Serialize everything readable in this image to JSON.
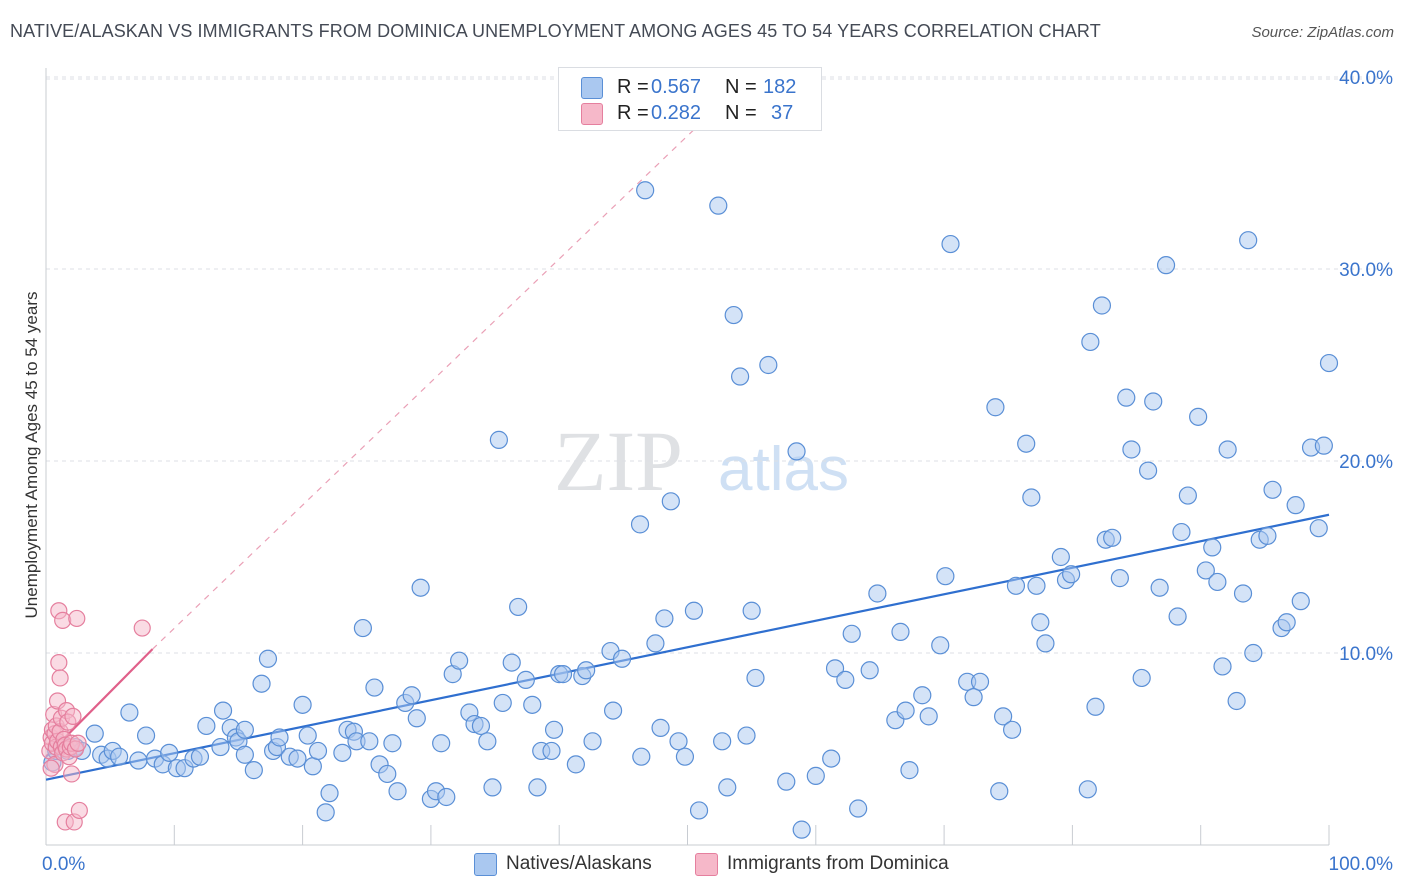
{
  "title": "NATIVE/ALASKAN VS IMMIGRANTS FROM DOMINICA UNEMPLOYMENT AMONG AGES 45 TO 54 YEARS CORRELATION CHART",
  "source": "Source: ZipAtlas.com",
  "watermark": {
    "zip": "ZIP",
    "atlas": "atlas"
  },
  "legend": {
    "r_label": "R =",
    "n_label": "N =",
    "rows": [
      {
        "r": "0.567",
        "n": "182"
      },
      {
        "r": "0.282",
        "n": "37"
      }
    ]
  },
  "colors": {
    "series1_fill": "#aac8f0",
    "series1_stroke": "#5a8fd6",
    "series1_line": "#2f6fcf",
    "series2_fill": "#f6b8c9",
    "series2_stroke": "#e57f9e",
    "series2_line": "#e0608a",
    "axis_text": "#3a74cc",
    "grid": "#dcdfe4"
  },
  "chart_data": {
    "type": "scatter",
    "title": "NATIVE/ALASKAN VS IMMIGRANTS FROM DOMINICA UNEMPLOYMENT AMONG AGES 45 TO 54 YEARS CORRELATION CHART",
    "xlabel": "",
    "ylabel": "Unemployment Among Ages 45 to 54 years",
    "xlim": [
      0,
      100
    ],
    "ylim": [
      0,
      40
    ],
    "x_tick_labels": [
      "0.0%",
      "100.0%"
    ],
    "y_ticks": [
      10,
      20,
      30,
      40
    ],
    "y_tick_labels": [
      "10.0%",
      "20.0%",
      "30.0%",
      "40.0%"
    ],
    "legend_position": "top-center",
    "series": [
      {
        "name": "Natives/Alaskans",
        "R": 0.567,
        "N": 182,
        "trend": {
          "x": [
            0,
            100
          ],
          "y": [
            3.4,
            17.2
          ]
        },
        "points": [
          [
            0.5,
            4.3
          ],
          [
            0.8,
            4.9
          ],
          [
            1.2,
            5.2
          ],
          [
            1.7,
            4.9
          ],
          [
            2.3,
            5.1
          ],
          [
            2.8,
            4.9
          ],
          [
            3.8,
            5.8
          ],
          [
            4.3,
            4.7
          ],
          [
            4.8,
            4.5
          ],
          [
            5.2,
            4.9
          ],
          [
            5.7,
            4.6
          ],
          [
            6.5,
            6.9
          ],
          [
            7.2,
            4.4
          ],
          [
            7.8,
            5.7
          ],
          [
            8.5,
            4.5
          ],
          [
            9.1,
            4.2
          ],
          [
            9.6,
            4.8
          ],
          [
            10.2,
            4.0
          ],
          [
            10.8,
            4.0
          ],
          [
            11.5,
            4.5
          ],
          [
            12.0,
            4.6
          ],
          [
            12.5,
            6.2
          ],
          [
            13.6,
            5.1
          ],
          [
            13.8,
            7.0
          ],
          [
            14.4,
            6.1
          ],
          [
            14.8,
            5.6
          ],
          [
            15.0,
            5.4
          ],
          [
            15.5,
            4.7
          ],
          [
            15.5,
            6.0
          ],
          [
            16.2,
            3.9
          ],
          [
            16.8,
            8.4
          ],
          [
            17.3,
            9.7
          ],
          [
            17.7,
            4.9
          ],
          [
            18.0,
            5.1
          ],
          [
            18.2,
            5.6
          ],
          [
            19.0,
            4.6
          ],
          [
            19.6,
            4.5
          ],
          [
            20.0,
            7.3
          ],
          [
            20.4,
            5.7
          ],
          [
            20.8,
            4.1
          ],
          [
            21.2,
            4.9
          ],
          [
            21.8,
            1.7
          ],
          [
            22.1,
            2.7
          ],
          [
            23.1,
            4.8
          ],
          [
            23.5,
            6.0
          ],
          [
            24.0,
            5.9
          ],
          [
            24.2,
            5.4
          ],
          [
            24.7,
            11.3
          ],
          [
            25.2,
            5.4
          ],
          [
            25.6,
            8.2
          ],
          [
            26.0,
            4.2
          ],
          [
            26.6,
            3.7
          ],
          [
            27.0,
            5.3
          ],
          [
            27.4,
            2.8
          ],
          [
            28.0,
            7.4
          ],
          [
            28.5,
            7.8
          ],
          [
            28.9,
            6.6
          ],
          [
            29.2,
            13.4
          ],
          [
            30.0,
            2.4
          ],
          [
            30.4,
            2.8
          ],
          [
            30.8,
            5.3
          ],
          [
            31.2,
            2.5
          ],
          [
            31.7,
            8.9
          ],
          [
            32.2,
            9.6
          ],
          [
            33.0,
            6.9
          ],
          [
            33.4,
            6.3
          ],
          [
            33.9,
            6.2
          ],
          [
            34.4,
            5.4
          ],
          [
            34.8,
            3.0
          ],
          [
            35.3,
            21.1
          ],
          [
            35.6,
            7.4
          ],
          [
            36.3,
            9.5
          ],
          [
            36.8,
            12.4
          ],
          [
            37.4,
            8.6
          ],
          [
            37.9,
            7.3
          ],
          [
            38.3,
            3.0
          ],
          [
            38.6,
            4.9
          ],
          [
            39.4,
            4.9
          ],
          [
            39.6,
            6.0
          ],
          [
            40.0,
            8.9
          ],
          [
            40.3,
            8.9
          ],
          [
            41.3,
            4.2
          ],
          [
            41.8,
            8.8
          ],
          [
            42.1,
            9.1
          ],
          [
            42.6,
            5.4
          ],
          [
            44.0,
            10.1
          ],
          [
            44.2,
            7.0
          ],
          [
            44.9,
            9.7
          ],
          [
            46.3,
            16.7
          ],
          [
            46.7,
            34.1
          ],
          [
            46.4,
            4.6
          ],
          [
            47.5,
            10.5
          ],
          [
            47.9,
            6.1
          ],
          [
            48.2,
            11.8
          ],
          [
            48.7,
            17.9
          ],
          [
            49.3,
            5.4
          ],
          [
            49.8,
            4.6
          ],
          [
            50.5,
            12.2
          ],
          [
            50.9,
            1.8
          ],
          [
            52.4,
            33.3
          ],
          [
            52.7,
            5.4
          ],
          [
            53.1,
            3.0
          ],
          [
            53.6,
            27.6
          ],
          [
            54.1,
            24.4
          ],
          [
            54.6,
            5.7
          ],
          [
            55.0,
            12.2
          ],
          [
            55.3,
            8.7
          ],
          [
            56.3,
            25.0
          ],
          [
            57.7,
            3.3
          ],
          [
            58.5,
            20.5
          ],
          [
            58.9,
            0.8
          ],
          [
            60.0,
            3.6
          ],
          [
            61.2,
            4.5
          ],
          [
            61.5,
            9.2
          ],
          [
            62.3,
            8.6
          ],
          [
            62.8,
            11.0
          ],
          [
            63.3,
            1.9
          ],
          [
            64.2,
            9.1
          ],
          [
            64.8,
            13.1
          ],
          [
            66.2,
            6.5
          ],
          [
            66.6,
            11.1
          ],
          [
            67.0,
            7.0
          ],
          [
            67.3,
            3.9
          ],
          [
            68.3,
            7.8
          ],
          [
            68.8,
            6.7
          ],
          [
            69.7,
            10.4
          ],
          [
            70.1,
            14.0
          ],
          [
            70.5,
            31.3
          ],
          [
            71.8,
            8.5
          ],
          [
            72.3,
            7.7
          ],
          [
            72.8,
            8.5
          ],
          [
            74.0,
            22.8
          ],
          [
            74.3,
            2.8
          ],
          [
            74.6,
            6.7
          ],
          [
            75.3,
            6.0
          ],
          [
            75.6,
            13.5
          ],
          [
            76.4,
            20.9
          ],
          [
            76.8,
            18.1
          ],
          [
            77.2,
            13.5
          ],
          [
            77.5,
            11.6
          ],
          [
            77.9,
            10.5
          ],
          [
            79.1,
            15.0
          ],
          [
            79.5,
            13.8
          ],
          [
            79.9,
            14.1
          ],
          [
            81.2,
            2.9
          ],
          [
            81.4,
            26.2
          ],
          [
            81.8,
            7.2
          ],
          [
            82.3,
            28.1
          ],
          [
            82.6,
            15.9
          ],
          [
            83.1,
            16.0
          ],
          [
            83.7,
            13.9
          ],
          [
            84.2,
            23.3
          ],
          [
            84.6,
            20.6
          ],
          [
            85.4,
            8.7
          ],
          [
            85.9,
            19.5
          ],
          [
            86.3,
            23.1
          ],
          [
            86.8,
            13.4
          ],
          [
            87.3,
            30.2
          ],
          [
            88.2,
            11.9
          ],
          [
            88.5,
            16.3
          ],
          [
            89.0,
            18.2
          ],
          [
            89.8,
            22.3
          ],
          [
            90.4,
            14.3
          ],
          [
            90.9,
            15.5
          ],
          [
            91.3,
            13.7
          ],
          [
            91.7,
            9.3
          ],
          [
            92.1,
            20.6
          ],
          [
            92.8,
            7.5
          ],
          [
            93.3,
            13.1
          ],
          [
            93.7,
            31.5
          ],
          [
            94.1,
            10.0
          ],
          [
            94.6,
            15.9
          ],
          [
            95.2,
            16.1
          ],
          [
            95.6,
            18.5
          ],
          [
            96.3,
            11.3
          ],
          [
            96.7,
            11.6
          ],
          [
            97.4,
            17.7
          ],
          [
            97.8,
            12.7
          ],
          [
            98.6,
            20.7
          ],
          [
            99.2,
            16.5
          ],
          [
            99.6,
            20.8
          ],
          [
            100.0,
            25.1
          ]
        ]
      },
      {
        "name": "Immigrants from Dominica",
        "R": 0.282,
        "N": 37,
        "trend": {
          "x": [
            0,
            8.3
          ],
          "y": [
            4.6,
            10.2
          ]
        },
        "trend_extension": {
          "x": [
            8.3,
            54.0
          ],
          "y": [
            10.2,
            39.5
          ]
        },
        "points": [
          [
            0.3,
            4.9
          ],
          [
            0.4,
            5.6
          ],
          [
            0.5,
            5.3
          ],
          [
            0.5,
            6.0
          ],
          [
            0.6,
            6.8
          ],
          [
            0.7,
            5.8
          ],
          [
            0.7,
            4.2
          ],
          [
            0.8,
            5.1
          ],
          [
            0.8,
            6.2
          ],
          [
            0.9,
            7.5
          ],
          [
            0.9,
            5.4
          ],
          [
            1.0,
            12.2
          ],
          [
            1.0,
            9.5
          ],
          [
            1.1,
            8.7
          ],
          [
            1.1,
            5.9
          ],
          [
            1.2,
            5.1
          ],
          [
            1.2,
            6.6
          ],
          [
            1.3,
            4.8
          ],
          [
            1.3,
            11.7
          ],
          [
            1.4,
            5.5
          ],
          [
            1.5,
            1.2
          ],
          [
            1.5,
            5.2
          ],
          [
            1.6,
            7.0
          ],
          [
            1.6,
            5.0
          ],
          [
            1.7,
            6.4
          ],
          [
            1.8,
            4.6
          ],
          [
            1.9,
            5.1
          ],
          [
            2.0,
            3.7
          ],
          [
            2.0,
            5.3
          ],
          [
            2.1,
            6.7
          ],
          [
            2.2,
            1.2
          ],
          [
            2.3,
            5.0
          ],
          [
            2.4,
            11.8
          ],
          [
            2.5,
            5.3
          ],
          [
            2.6,
            1.8
          ],
          [
            7.5,
            11.3
          ],
          [
            0.4,
            4.0
          ]
        ]
      }
    ]
  }
}
